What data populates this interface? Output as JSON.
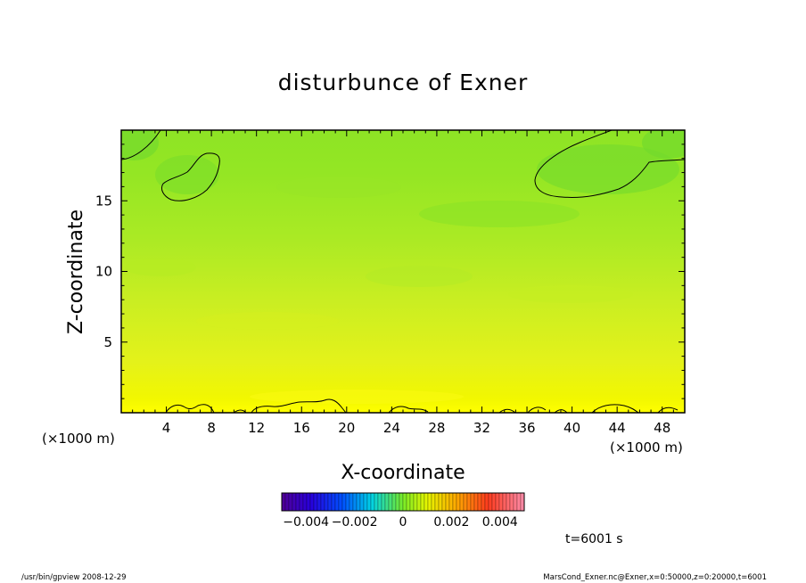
{
  "chart_data": {
    "type": "heatmap",
    "title": "disturbunce of Exner",
    "xlabel": "X-coordinate",
    "ylabel": "Z-coordinate",
    "x_unit_left": "(×1000 m)",
    "x_unit_right": "(×1000 m)",
    "xlim": [
      0,
      50
    ],
    "ylim": [
      0,
      20
    ],
    "x_ticks": [
      4,
      8,
      12,
      16,
      20,
      24,
      28,
      32,
      36,
      40,
      44,
      48
    ],
    "y_ticks": [
      5,
      10,
      15
    ],
    "colorbar": {
      "range": [
        -0.005,
        0.005
      ],
      "tick_values": [
        -0.004,
        -0.002,
        0,
        0.002,
        0.004
      ],
      "tick_labels": [
        "−0.004",
        "−0.002",
        "0",
        "0.002",
        "0.004"
      ]
    },
    "field_summary": {
      "near_surface_value": 0.0012,
      "mid_level_value": 0.0009,
      "top_level_value": 0.0006
    },
    "time_label": "t=6001 s",
    "footer_left": "/usr/bin/gpview   2008-12-29",
    "footer_right": "MarsCond_Exner.nc@Exner,x=0:50000,z=0:20000,t=6001"
  }
}
